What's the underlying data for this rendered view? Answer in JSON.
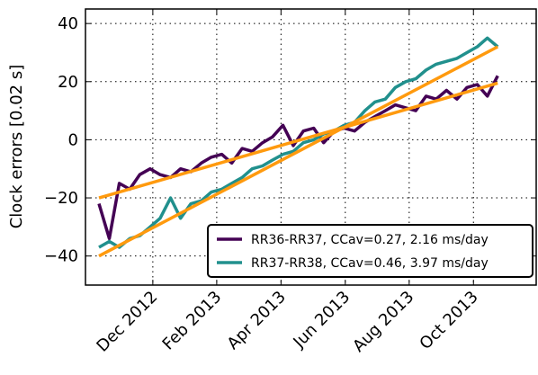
{
  "chart_data": {
    "type": "line",
    "ylabel": "Clock errors [0.02 s]",
    "x": [
      2012.777,
      2012.804,
      2012.83,
      2012.857,
      2012.883,
      2012.91,
      2012.936,
      2012.963,
      2012.989,
      2013.016,
      2013.043,
      2013.069,
      2013.096,
      2013.122,
      2013.149,
      2013.175,
      2013.202,
      2013.228,
      2013.255,
      2013.282,
      2013.308,
      2013.335,
      2013.361,
      2013.388,
      2013.414,
      2013.441,
      2013.468,
      2013.494,
      2013.521,
      2013.547,
      2013.574,
      2013.6,
      2013.627,
      2013.653,
      2013.68,
      2013.707,
      2013.733,
      2013.76,
      2013.786,
      2013.813
    ],
    "series": [
      {
        "name": "RR36-RR37, CCav=0.27, 2.16 ms/day",
        "color": "#440154",
        "values": [
          -22,
          -34,
          -15,
          -17,
          -12,
          -10,
          -12,
          -13,
          -10,
          -11,
          -8,
          -6,
          -5,
          -8,
          -3,
          -4,
          -1,
          1,
          5,
          -2,
          3,
          4,
          -1,
          3,
          4,
          3,
          6,
          8,
          10,
          12,
          11,
          10,
          15,
          14,
          17,
          14,
          18,
          19,
          15,
          22
        ]
      },
      {
        "name": "RR37-RR38, CCav=0.46, 3.97 ms/day",
        "color": "#21908d",
        "values": [
          -37,
          -35,
          -37,
          -34,
          -33,
          -30,
          -27,
          -20,
          -27,
          -22,
          -21,
          -18,
          -17,
          -15,
          -13,
          -10,
          -9,
          -7,
          -5,
          -4,
          -1,
          0,
          2,
          3,
          5,
          6,
          10,
          13,
          14,
          18,
          20,
          21,
          24,
          26,
          27,
          28,
          30,
          32,
          35,
          32
        ]
      }
    ],
    "fit_lines": [
      {
        "color": "#ff9a0e",
        "x": [
          2012.777,
          2013.813
        ],
        "values": [
          -20,
          19.5
        ]
      },
      {
        "color": "#ff9a0e",
        "x": [
          2012.777,
          2013.813
        ],
        "values": [
          -40,
          32
        ]
      }
    ],
    "xlim": [
      2012.742,
      2013.913
    ],
    "xticks": [
      {
        "value": 2012.917,
        "label": "Dec 2012"
      },
      {
        "value": 2013.083,
        "label": "Feb 2013"
      },
      {
        "value": 2013.25,
        "label": "Apr 2013"
      },
      {
        "value": 2013.417,
        "label": "Jun 2013"
      },
      {
        "value": 2013.583,
        "label": "Aug 2013"
      },
      {
        "value": 2013.75,
        "label": "Oct 2013"
      }
    ],
    "ylim": [
      -50,
      45
    ],
    "yticks": [
      {
        "value": -40,
        "label": "−40"
      },
      {
        "value": -20,
        "label": "−20"
      },
      0,
      20,
      40
    ],
    "grid": true,
    "legend": "lower right"
  }
}
